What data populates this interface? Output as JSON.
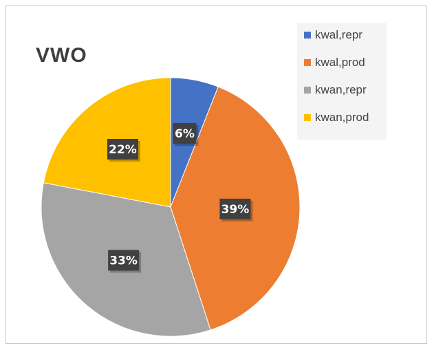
{
  "chart_data": {
    "type": "pie",
    "title": "VWO",
    "legend_position": "top-right",
    "slices": [
      {
        "label": "kwal,repr",
        "value": 6,
        "display": "6%",
        "color": "#4472C4"
      },
      {
        "label": "kwal,prod",
        "value": 39,
        "display": "39%",
        "color": "#ED7D31"
      },
      {
        "label": "kwan,repr",
        "value": 33,
        "display": "33%",
        "color": "#A5A5A5"
      },
      {
        "label": "kwan,prod",
        "value": 22,
        "display": "22%",
        "color": "#FFC000"
      }
    ]
  }
}
